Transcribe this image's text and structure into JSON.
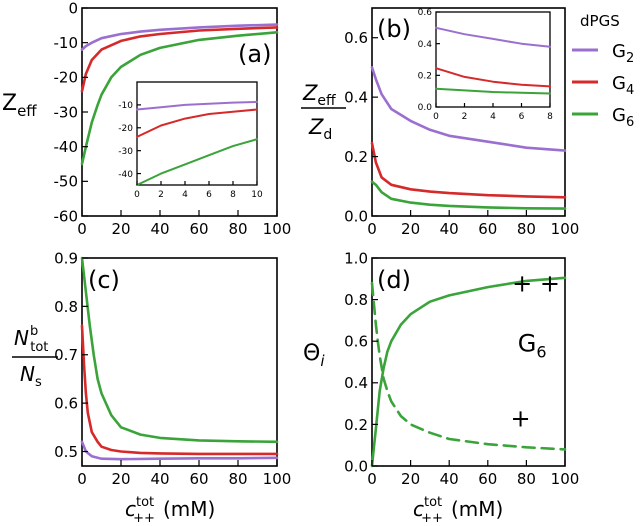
{
  "legend": {
    "title": "dPGS",
    "entries": [
      {
        "base": "G",
        "sub": "2",
        "color": "#9b6fcf"
      },
      {
        "base": "G",
        "sub": "4",
        "color": "#d62a2a"
      },
      {
        "base": "G",
        "sub": "6",
        "color": "#3aa43a"
      }
    ]
  },
  "xlabel": {
    "main": "c",
    "sup": "tot",
    "sub": "++",
    "unit": "(mM)"
  },
  "chart_data": [
    {
      "id": "a",
      "panel_label": "(a)",
      "type": "line",
      "ylabel": {
        "main": "Z",
        "sub": "eff"
      },
      "xlim": [
        0,
        100
      ],
      "ylim": [
        -60,
        0
      ],
      "xticks": [
        0,
        20,
        40,
        60,
        80,
        100
      ],
      "yticks": [
        -60,
        -50,
        -40,
        -30,
        -20,
        -10,
        0
      ],
      "series": [
        {
          "name": "G2",
          "color": "#9b6fcf",
          "dash": false,
          "x": [
            0,
            2,
            5,
            10,
            20,
            30,
            40,
            60,
            80,
            100
          ],
          "y": [
            -12,
            -11,
            -10,
            -8.7,
            -7.5,
            -6.8,
            -6.3,
            -5.6,
            -5.1,
            -4.8
          ]
        },
        {
          "name": "G4",
          "color": "#d62a2a",
          "dash": false,
          "x": [
            0,
            2,
            5,
            10,
            20,
            30,
            40,
            60,
            80,
            100
          ],
          "y": [
            -24,
            -19,
            -15,
            -12,
            -9.5,
            -8.2,
            -7.5,
            -6.5,
            -6.0,
            -5.6
          ]
        },
        {
          "name": "G6",
          "color": "#3aa43a",
          "dash": false,
          "x": [
            0,
            2,
            5,
            8,
            10,
            15,
            20,
            30,
            40,
            60,
            80,
            100
          ],
          "y": [
            -45,
            -40,
            -33,
            -28,
            -25,
            -20,
            -17,
            -13.5,
            -11.5,
            -9.2,
            -8.0,
            -7.0
          ]
        }
      ],
      "inset": {
        "xlim": [
          0,
          10
        ],
        "ylim": [
          -45,
          0
        ],
        "xticks": [
          0,
          2,
          4,
          6,
          8,
          10
        ],
        "yticks": [
          -40,
          -30,
          -20,
          -10
        ],
        "series": [
          {
            "name": "G2",
            "color": "#9b6fcf",
            "x": [
              0,
              2,
              4,
              6,
              8,
              10
            ],
            "y": [
              -12,
              -11,
              -10,
              -9.5,
              -9,
              -8.7
            ]
          },
          {
            "name": "G4",
            "color": "#d62a2a",
            "x": [
              0,
              2,
              4,
              6,
              8,
              10
            ],
            "y": [
              -24,
              -19,
              -16,
              -14,
              -13,
              -12
            ]
          },
          {
            "name": "G6",
            "color": "#3aa43a",
            "x": [
              0,
              2,
              4,
              6,
              8,
              10
            ],
            "y": [
              -45,
              -40,
              -36,
              -32,
              -28,
              -25
            ]
          }
        ]
      }
    },
    {
      "id": "b",
      "panel_label": "(b)",
      "type": "line",
      "ylabel": {
        "num": "Z",
        "num_sub": "eff",
        "den": "Z",
        "den_sub": "d"
      },
      "xlim": [
        0,
        100
      ],
      "ylim": [
        0,
        0.7
      ],
      "xticks": [
        0,
        20,
        40,
        60,
        80,
        100
      ],
      "yticks": [
        0.0,
        0.2,
        0.4,
        0.6
      ],
      "series": [
        {
          "name": "G2",
          "color": "#9b6fcf",
          "dash": false,
          "x": [
            0,
            2,
            5,
            10,
            20,
            30,
            40,
            60,
            80,
            100
          ],
          "y": [
            0.5,
            0.46,
            0.41,
            0.36,
            0.32,
            0.29,
            0.27,
            0.25,
            0.23,
            0.22
          ]
        },
        {
          "name": "G4",
          "color": "#d62a2a",
          "dash": false,
          "x": [
            0,
            2,
            5,
            10,
            20,
            30,
            40,
            60,
            80,
            100
          ],
          "y": [
            0.245,
            0.18,
            0.13,
            0.105,
            0.09,
            0.082,
            0.077,
            0.07,
            0.066,
            0.063
          ]
        },
        {
          "name": "G6",
          "color": "#3aa43a",
          "dash": false,
          "x": [
            0,
            2,
            5,
            10,
            20,
            30,
            40,
            60,
            80,
            100
          ],
          "y": [
            0.115,
            0.105,
            0.08,
            0.058,
            0.045,
            0.038,
            0.034,
            0.029,
            0.026,
            0.025
          ]
        }
      ],
      "inset": {
        "xlim": [
          0,
          8
        ],
        "ylim": [
          0,
          0.6
        ],
        "xticks": [
          0,
          2,
          4,
          6,
          8
        ],
        "yticks": [
          0.0,
          0.2,
          0.4,
          0.6
        ],
        "series": [
          {
            "name": "G2",
            "color": "#9b6fcf",
            "x": [
              0,
              2,
              4,
              6,
              8
            ],
            "y": [
              0.5,
              0.46,
              0.43,
              0.4,
              0.38
            ]
          },
          {
            "name": "G4",
            "color": "#d62a2a",
            "x": [
              0,
              2,
              4,
              6,
              8
            ],
            "y": [
              0.245,
              0.19,
              0.16,
              0.14,
              0.13
            ]
          },
          {
            "name": "G6",
            "color": "#3aa43a",
            "x": [
              0,
              2,
              4,
              6,
              8
            ],
            "y": [
              0.115,
              0.105,
              0.095,
              0.09,
              0.085
            ]
          }
        ]
      }
    },
    {
      "id": "c",
      "panel_label": "(c)",
      "type": "line",
      "ylabel": {
        "num": "N",
        "num_sup": "b",
        "num_sub": "tot",
        "den": "N",
        "den_sub": "s"
      },
      "xlim": [
        0,
        100
      ],
      "ylim": [
        0.47,
        0.9
      ],
      "xticks": [
        0,
        20,
        40,
        60,
        80,
        100
      ],
      "yticks": [
        0.5,
        0.6,
        0.7,
        0.8,
        0.9
      ],
      "series": [
        {
          "name": "G2",
          "color": "#9b6fcf",
          "dash": false,
          "x": [
            0,
            2,
            5,
            10,
            20,
            40,
            60,
            80,
            100
          ],
          "y": [
            0.52,
            0.5,
            0.49,
            0.485,
            0.484,
            0.485,
            0.486,
            0.486,
            0.487
          ]
        },
        {
          "name": "G4",
          "color": "#d62a2a",
          "dash": false,
          "x": [
            0,
            1,
            2,
            3,
            5,
            8,
            10,
            15,
            20,
            30,
            40,
            60,
            80,
            100
          ],
          "y": [
            0.76,
            0.68,
            0.62,
            0.58,
            0.54,
            0.52,
            0.51,
            0.503,
            0.5,
            0.497,
            0.496,
            0.495,
            0.495,
            0.495
          ]
        },
        {
          "name": "G6",
          "color": "#3aa43a",
          "dash": false,
          "x": [
            0,
            2,
            4,
            6,
            8,
            10,
            15,
            20,
            30,
            40,
            60,
            80,
            100
          ],
          "y": [
            0.9,
            0.83,
            0.76,
            0.7,
            0.65,
            0.62,
            0.575,
            0.55,
            0.535,
            0.528,
            0.523,
            0.521,
            0.52
          ]
        }
      ]
    },
    {
      "id": "d",
      "panel_label": "(d)",
      "type": "line",
      "ylabel": {
        "main": "Θ",
        "sub": "i"
      },
      "xlim": [
        0,
        100
      ],
      "ylim": [
        0,
        1.0
      ],
      "xticks": [
        0,
        20,
        40,
        60,
        80,
        100
      ],
      "yticks": [
        0.0,
        0.2,
        0.4,
        0.6,
        0.8,
        1.0
      ],
      "annotations": [
        {
          "id": "plus-plus",
          "text": "+ +",
          "x": 85,
          "y": 0.84
        },
        {
          "id": "g6-label",
          "text": "G",
          "sub": "6",
          "x": 83,
          "y": 0.55
        },
        {
          "id": "plus",
          "text": "+",
          "x": 77,
          "y": 0.19
        }
      ],
      "series": [
        {
          "name": "G6 (++)",
          "color": "#3aa43a",
          "dash": false,
          "x": [
            0,
            1,
            2,
            3,
            4,
            6,
            8,
            10,
            15,
            20,
            30,
            40,
            60,
            80,
            100
          ],
          "y": [
            0,
            0.09,
            0.18,
            0.27,
            0.36,
            0.47,
            0.55,
            0.6,
            0.68,
            0.73,
            0.79,
            0.82,
            0.86,
            0.89,
            0.905
          ]
        },
        {
          "name": "G6 (+)",
          "color": "#3aa43a",
          "dash": true,
          "x": [
            0,
            1,
            2,
            3,
            4,
            6,
            8,
            10,
            15,
            20,
            30,
            40,
            60,
            80,
            100
          ],
          "y": [
            0.88,
            0.78,
            0.68,
            0.6,
            0.53,
            0.42,
            0.36,
            0.31,
            0.24,
            0.2,
            0.16,
            0.13,
            0.105,
            0.09,
            0.08
          ]
        }
      ]
    }
  ]
}
